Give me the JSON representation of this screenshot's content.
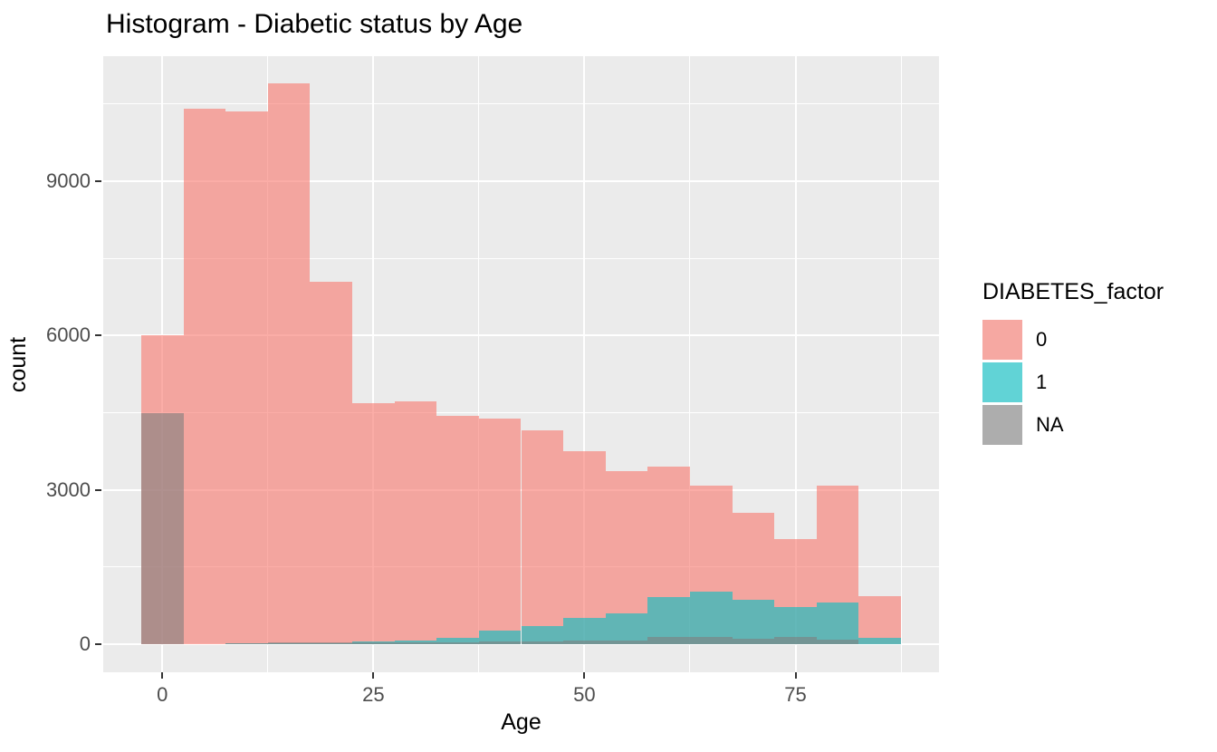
{
  "page": {
    "background": "#FFFFFF"
  },
  "chart_data": {
    "type": "bar",
    "subtype": "overlaid-histogram",
    "title": "Histogram - Diabetic status by Age",
    "xlabel": "Age",
    "ylabel": "count",
    "legend_title": "DIABETES_factor",
    "legend_position": "right",
    "bin_width": 5,
    "bin_centers": [
      0,
      5,
      10,
      15,
      20,
      25,
      30,
      35,
      40,
      45,
      50,
      55,
      60,
      65,
      70,
      75,
      80,
      85
    ],
    "series": [
      {
        "name": "0",
        "fill_rgba": "rgba(248,118,109,0.6)",
        "legend_swatch": "#F6A8A2",
        "values": [
          6000,
          10400,
          10350,
          10900,
          7050,
          4690,
          4720,
          4440,
          4380,
          4150,
          3760,
          3360,
          3450,
          3090,
          2550,
          2050,
          3080,
          930
        ]
      },
      {
        "name": "1",
        "fill_rgba": "rgba(0,191,196,0.6)",
        "legend_swatch": "#61D3D6",
        "values": [
          0,
          0,
          15,
          25,
          25,
          50,
          75,
          120,
          260,
          350,
          510,
          600,
          920,
          1020,
          870,
          730,
          815,
          120
        ]
      },
      {
        "name": "NA",
        "fill_rgba": "rgba(127,127,127,0.6)",
        "legend_swatch": "#ADADAD",
        "values": [
          4500,
          0,
          20,
          40,
          30,
          30,
          30,
          40,
          55,
          60,
          75,
          75,
          140,
          150,
          110,
          135,
          85,
          0
        ]
      }
    ],
    "x_ticks": [
      0,
      25,
      50,
      75
    ],
    "x_minor_ticks": [
      12.5,
      37.5,
      62.5,
      87.5
    ],
    "y_ticks": [
      0,
      3000,
      6000,
      9000
    ],
    "y_minor_ticks": [
      1500,
      4500,
      7500,
      10500
    ],
    "xlim": [
      -7,
      92
    ],
    "ylim": [
      -545,
      11430
    ],
    "grid": true,
    "panel_bg": "#EBEBEB",
    "grid_color": "#FFFFFF",
    "tick_color": "#333333",
    "axis_text_color": "#4D4D4D",
    "title_color": "#000000"
  }
}
